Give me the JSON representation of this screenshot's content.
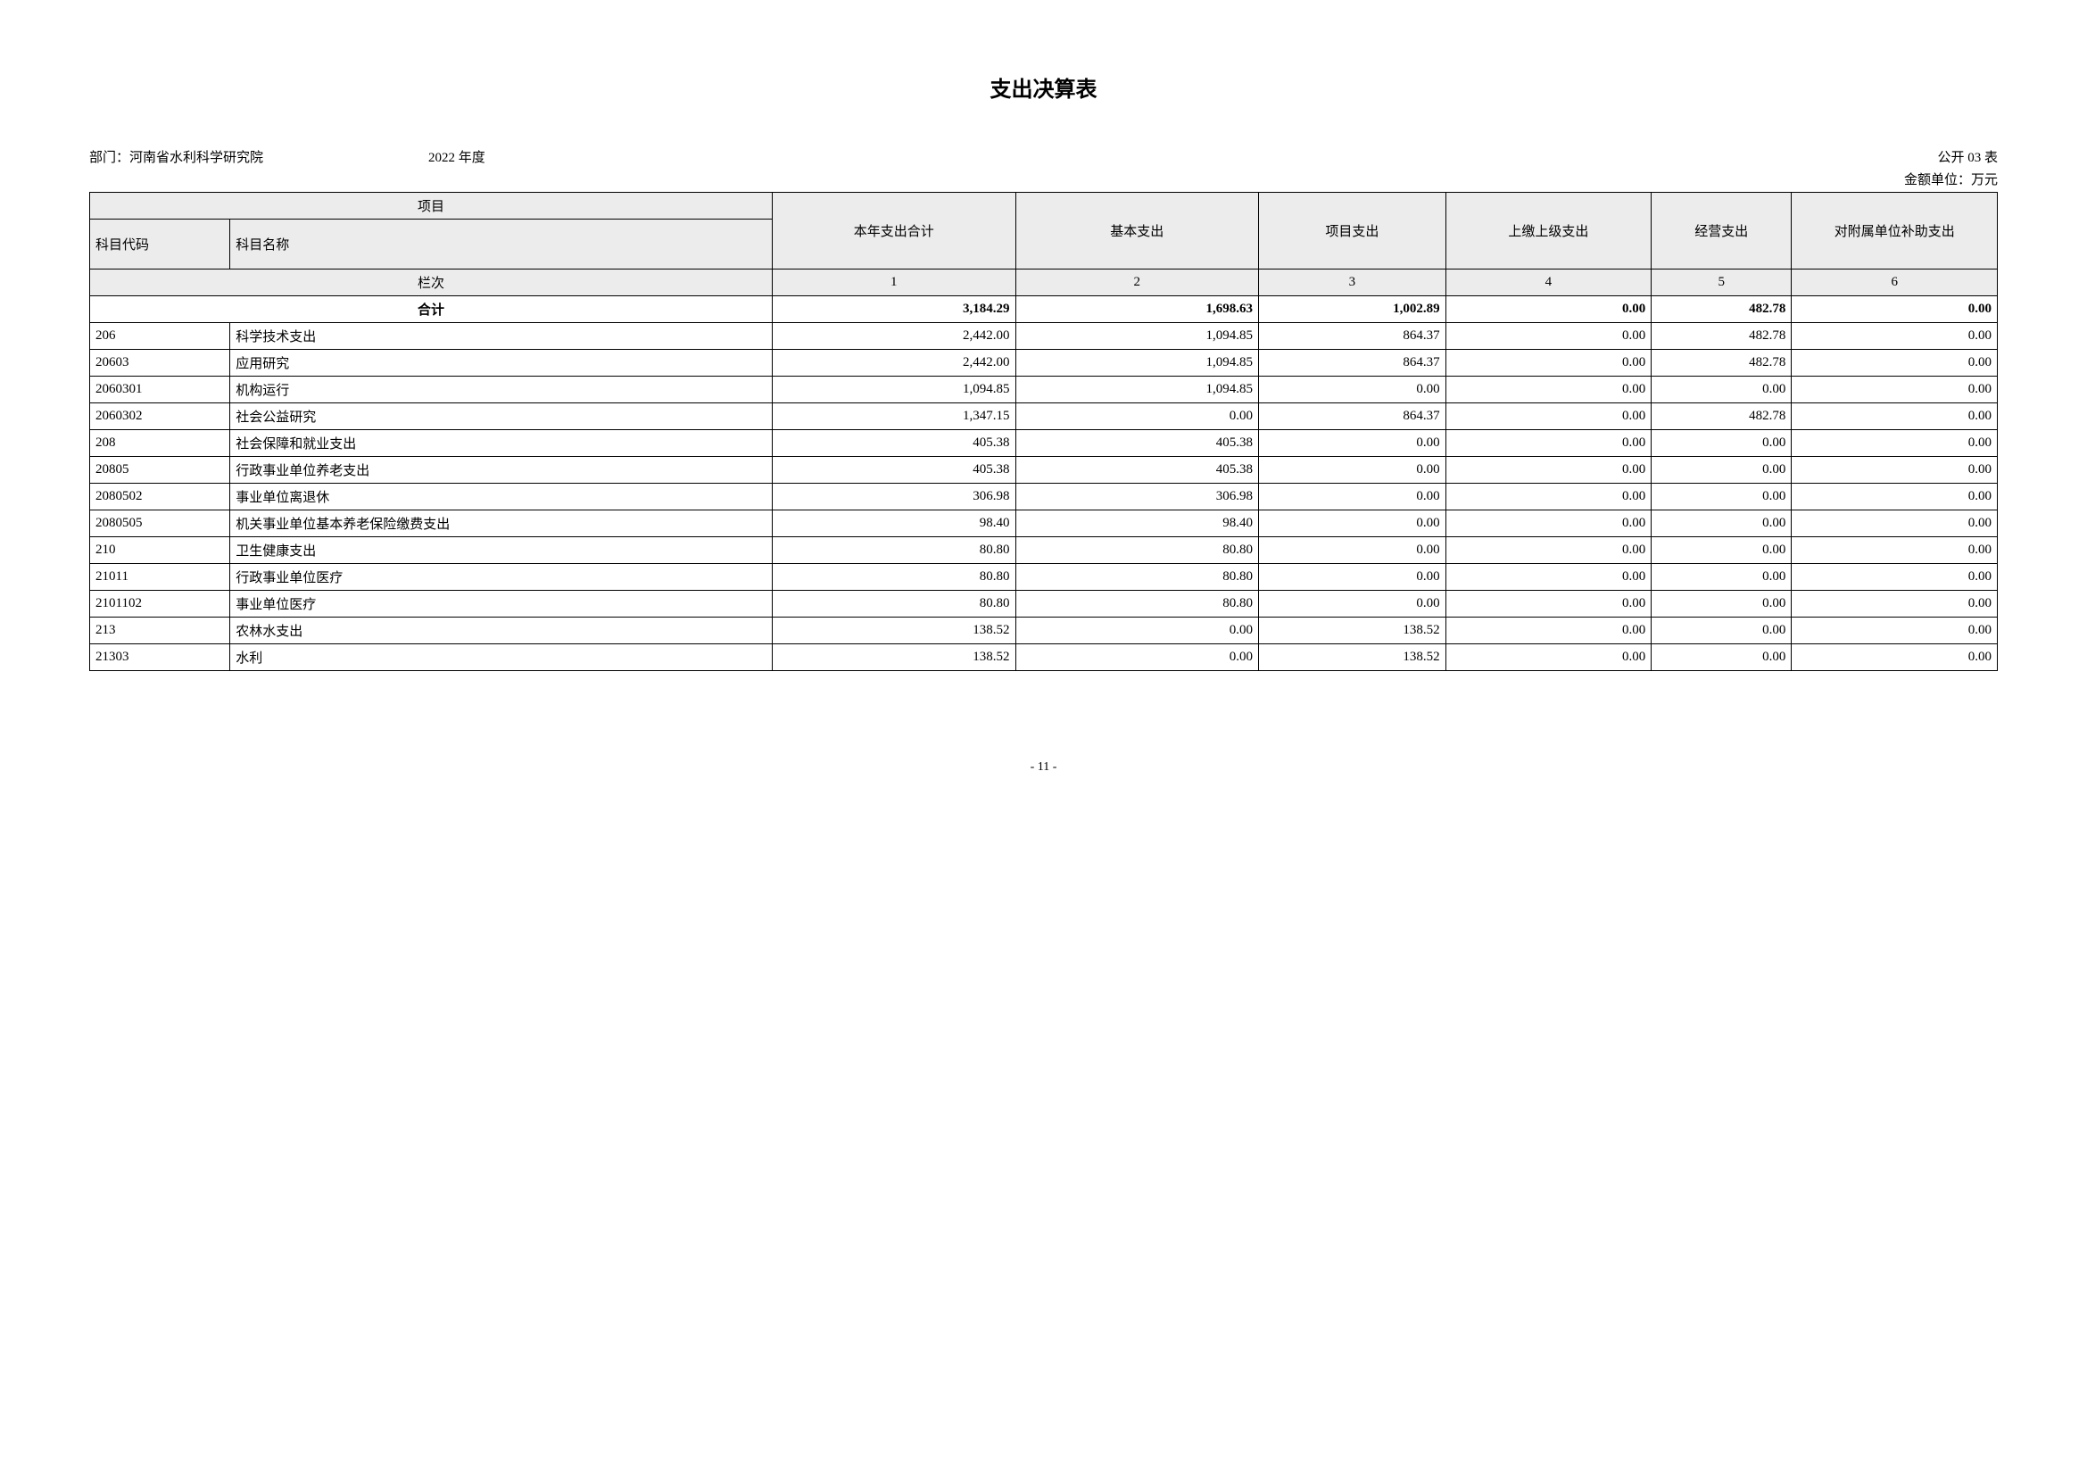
{
  "title": "支出决算表",
  "meta": {
    "department_label": "部门：",
    "department_value": "河南省水利科学研究院",
    "year": "2022 年度",
    "form_code": "公开 03 表",
    "unit": "金额单位：万元"
  },
  "table": {
    "group_header": "项目",
    "headers": {
      "code": "科目代码",
      "name": "科目名称",
      "c1": "本年支出合计",
      "c2": "基本支出",
      "c3": "项目支出",
      "c4": "上缴上级支出",
      "c5": "经营支出",
      "c6": "对附属单位补助支出"
    },
    "lanci_label": "栏次",
    "lanci": [
      "1",
      "2",
      "3",
      "4",
      "5",
      "6"
    ],
    "total_label": "合计",
    "total": [
      "3,184.29",
      "1,698.63",
      "1,002.89",
      "0.00",
      "482.78",
      "0.00"
    ],
    "rows": [
      {
        "code": "206",
        "name": "科学技术支出",
        "v": [
          "2,442.00",
          "1,094.85",
          "864.37",
          "0.00",
          "482.78",
          "0.00"
        ]
      },
      {
        "code": "20603",
        "name": "应用研究",
        "v": [
          "2,442.00",
          "1,094.85",
          "864.37",
          "0.00",
          "482.78",
          "0.00"
        ]
      },
      {
        "code": "2060301",
        "name": "机构运行",
        "v": [
          "1,094.85",
          "1,094.85",
          "0.00",
          "0.00",
          "0.00",
          "0.00"
        ]
      },
      {
        "code": "2060302",
        "name": "社会公益研究",
        "v": [
          "1,347.15",
          "0.00",
          "864.37",
          "0.00",
          "482.78",
          "0.00"
        ]
      },
      {
        "code": "208",
        "name": "社会保障和就业支出",
        "v": [
          "405.38",
          "405.38",
          "0.00",
          "0.00",
          "0.00",
          "0.00"
        ]
      },
      {
        "code": "20805",
        "name": "行政事业单位养老支出",
        "v": [
          "405.38",
          "405.38",
          "0.00",
          "0.00",
          "0.00",
          "0.00"
        ]
      },
      {
        "code": "2080502",
        "name": "事业单位离退休",
        "v": [
          "306.98",
          "306.98",
          "0.00",
          "0.00",
          "0.00",
          "0.00"
        ]
      },
      {
        "code": "2080505",
        "name": "机关事业单位基本养老保险缴费支出",
        "v": [
          "98.40",
          "98.40",
          "0.00",
          "0.00",
          "0.00",
          "0.00"
        ]
      },
      {
        "code": "210",
        "name": "卫生健康支出",
        "v": [
          "80.80",
          "80.80",
          "0.00",
          "0.00",
          "0.00",
          "0.00"
        ]
      },
      {
        "code": "21011",
        "name": "行政事业单位医疗",
        "v": [
          "80.80",
          "80.80",
          "0.00",
          "0.00",
          "0.00",
          "0.00"
        ]
      },
      {
        "code": "2101102",
        "name": "事业单位医疗",
        "v": [
          "80.80",
          "80.80",
          "0.00",
          "0.00",
          "0.00",
          "0.00"
        ]
      },
      {
        "code": "213",
        "name": "农林水支出",
        "v": [
          "138.52",
          "0.00",
          "138.52",
          "0.00",
          "0.00",
          "0.00"
        ]
      },
      {
        "code": "21303",
        "name": "水利",
        "v": [
          "138.52",
          "0.00",
          "138.52",
          "0.00",
          "0.00",
          "0.00"
        ]
      }
    ],
    "column_widths": {
      "c1": "130px",
      "c2": "130px",
      "c3": "100px",
      "c4": "110px",
      "c5": "75px",
      "c6": "110px"
    }
  },
  "page_number": "- 11 -",
  "styling": {
    "background_color": "#ffffff",
    "header_bg": "#ececec",
    "border_color": "#000000",
    "text_color": "#000000",
    "title_fontsize": 24,
    "body_fontsize": 15
  }
}
